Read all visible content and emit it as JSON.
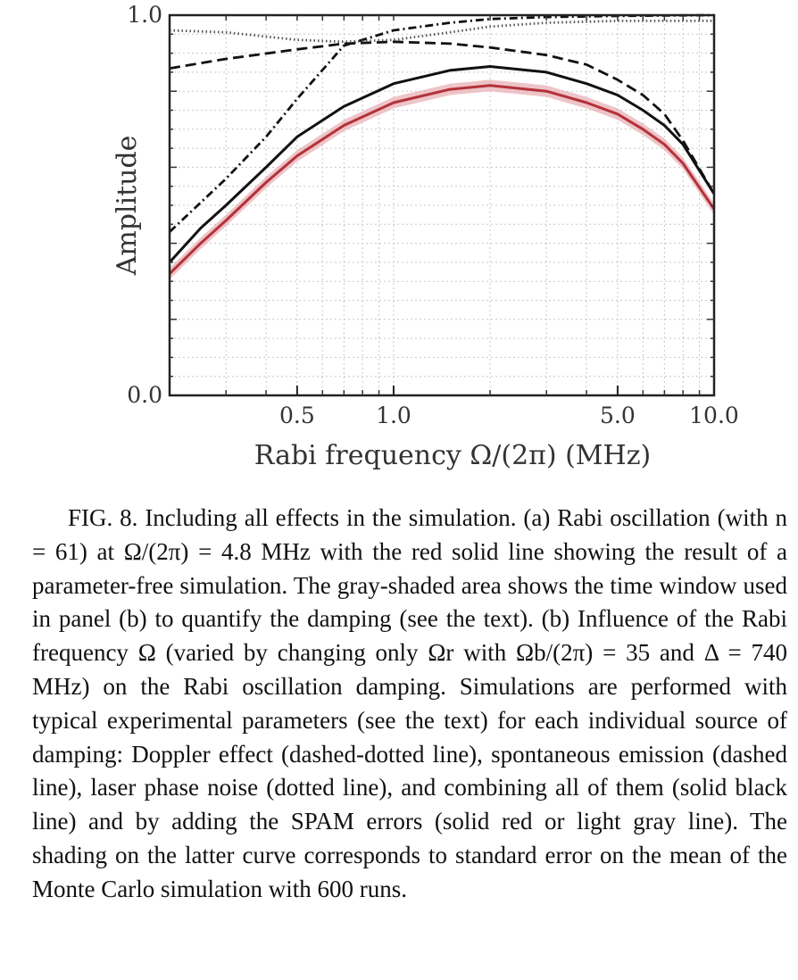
{
  "chart_data": {
    "type": "line",
    "xlabel": "Rabi frequency Ω/(2π) (MHz)",
    "ylabel": "Amplitude",
    "xscale": "log",
    "xlim": [
      0.2,
      10.0
    ],
    "ylim": [
      0.0,
      1.0
    ],
    "x_ticks": [
      0.5,
      1.0,
      5.0,
      10.0
    ],
    "x_tick_labels": [
      "0.5",
      "1.0",
      "5.0",
      "10.0"
    ],
    "y_ticks": [
      0.0,
      1.0
    ],
    "y_tick_labels": [
      "0.0",
      "1.0"
    ],
    "grid": true,
    "series": [
      {
        "style": "dashdot",
        "color": "#111111",
        "x": [
          0.2,
          0.3,
          0.4,
          0.5,
          0.7,
          1.0,
          1.5,
          2.0,
          3.0,
          5.0,
          7.0,
          10.0
        ],
        "y": [
          0.43,
          0.57,
          0.68,
          0.78,
          0.92,
          0.96,
          0.98,
          0.99,
          0.995,
          0.998,
          0.999,
          1.0
        ]
      },
      {
        "style": "dashed",
        "color": "#111111",
        "x": [
          0.2,
          0.3,
          0.5,
          0.7,
          1.0,
          1.5,
          2.0,
          3.0,
          4.0,
          5.0,
          6.0,
          7.0,
          8.0,
          10.0
        ],
        "y": [
          0.86,
          0.885,
          0.91,
          0.925,
          0.93,
          0.925,
          0.915,
          0.895,
          0.87,
          0.83,
          0.79,
          0.74,
          0.67,
          0.53
        ]
      },
      {
        "style": "dotted",
        "color": "#555555",
        "x": [
          0.2,
          0.3,
          0.5,
          0.7,
          1.0,
          1.5,
          2.0,
          3.0,
          5.0,
          7.0,
          10.0
        ],
        "y": [
          0.96,
          0.955,
          0.935,
          0.93,
          0.935,
          0.955,
          0.97,
          0.98,
          0.985,
          0.985,
          0.985
        ]
      },
      {
        "style": "solid",
        "color": "#111111",
        "x": [
          0.2,
          0.25,
          0.3,
          0.4,
          0.5,
          0.7,
          1.0,
          1.5,
          2.0,
          3.0,
          4.0,
          5.0,
          6.0,
          7.0,
          8.0,
          10.0
        ],
        "y": [
          0.35,
          0.44,
          0.5,
          0.6,
          0.68,
          0.76,
          0.82,
          0.855,
          0.865,
          0.85,
          0.82,
          0.79,
          0.75,
          0.71,
          0.66,
          0.53
        ]
      },
      {
        "style": "solid",
        "color": "#b3323a",
        "band": 0.015,
        "band_color": "#e8b0b5",
        "x": [
          0.2,
          0.25,
          0.3,
          0.4,
          0.5,
          0.7,
          1.0,
          1.5,
          2.0,
          3.0,
          4.0,
          5.0,
          6.0,
          7.0,
          8.0,
          10.0
        ],
        "y": [
          0.32,
          0.4,
          0.46,
          0.56,
          0.63,
          0.71,
          0.77,
          0.805,
          0.815,
          0.8,
          0.77,
          0.74,
          0.7,
          0.66,
          0.61,
          0.49
        ]
      }
    ]
  },
  "caption": {
    "text": "FIG. 8.  Including all effects in the simulation. (a) Rabi oscillation (with n = 61) at Ω/(2π) = 4.8 MHz with the red solid line showing the result of a parameter-free simulation. The gray-shaded area shows the time window used in panel (b) to quantify the damping (see the text). (b) Influence of the Rabi frequency Ω (varied by changing only Ωr with Ωb/(2π) = 35 and Δ = 740 MHz) on the Rabi oscillation damping. Simulations are performed with typical experimental parameters (see the text) for each individual source of damping: Doppler effect (dashed-dotted line), spontaneous emission (dashed line), laser phase noise (dotted line), and combining all of them (solid black line) and by adding the SPAM errors (solid red or light gray line). The shading on the latter curve corresponds to standard error on the mean of the Monte Carlo simulation with 600 runs."
  }
}
